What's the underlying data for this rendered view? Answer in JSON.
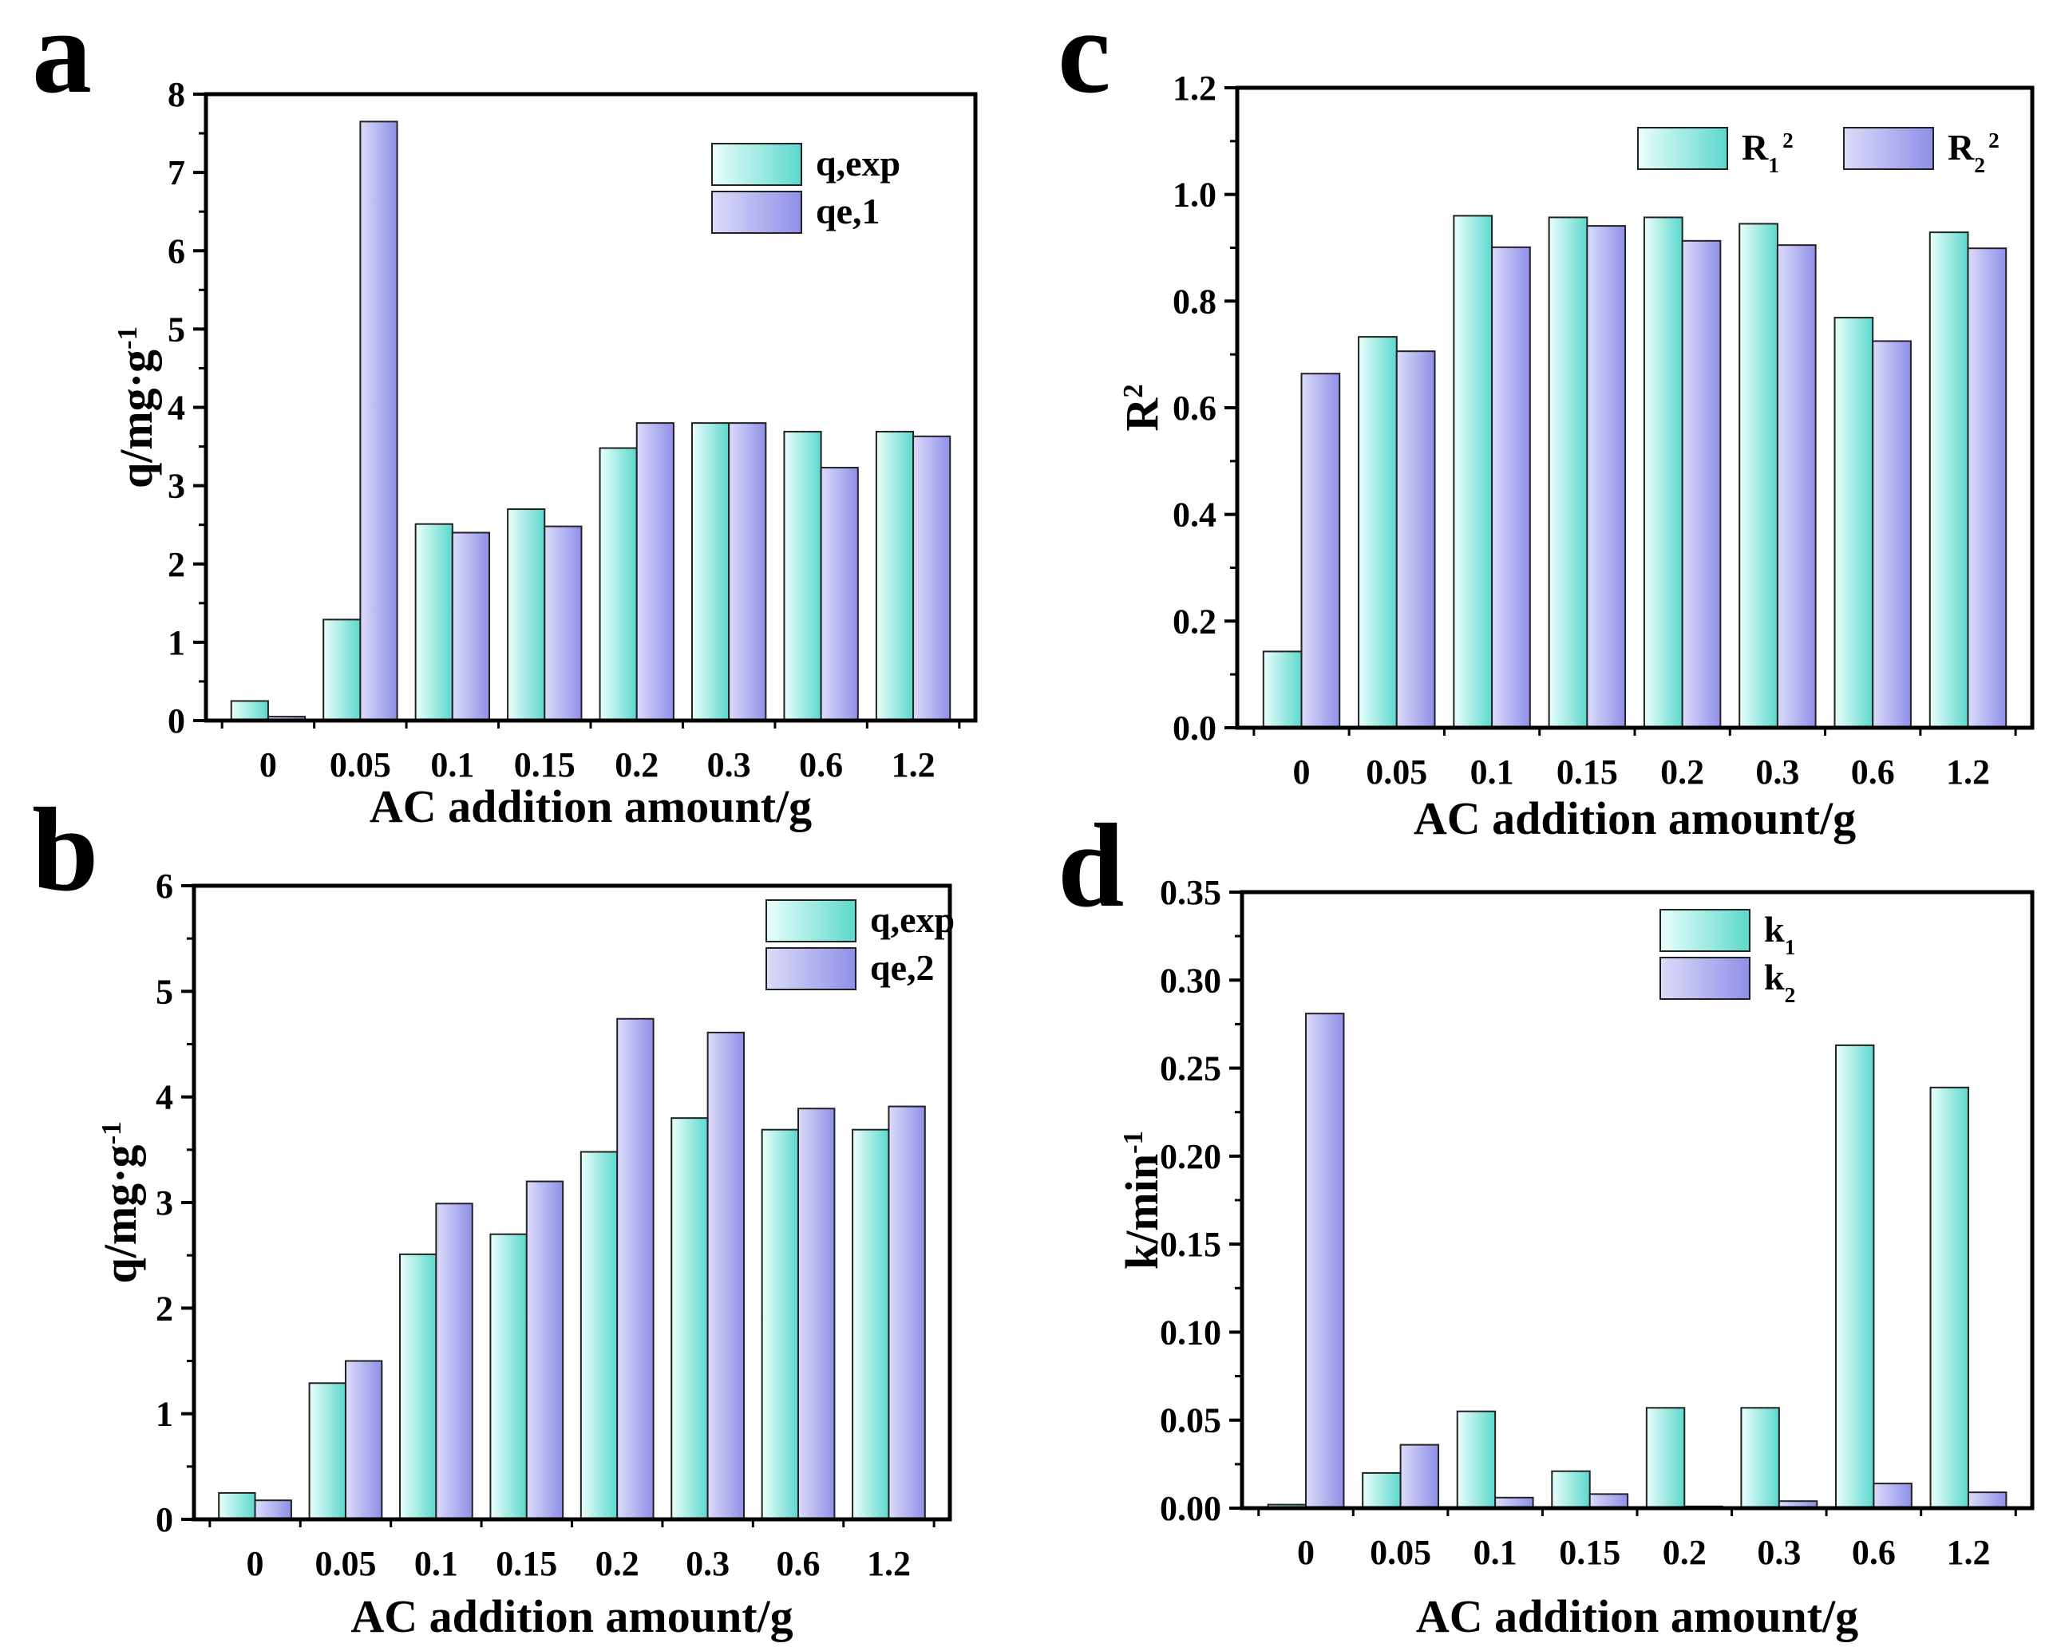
{
  "figure": {
    "panels": [
      "a",
      "b",
      "c",
      "d"
    ]
  },
  "colors": {
    "series1_light": "#eafffb",
    "series1_dark": "#5cd8cd",
    "series2_light": "#dcdcfa",
    "series2_dark": "#8f8fe8",
    "axis": "#000000"
  },
  "chart_data": [
    {
      "panel": "a",
      "type": "bar",
      "categories": [
        "0",
        "0.05",
        "0.1",
        "0.15",
        "0.2",
        "0.3",
        "0.6",
        "1.2"
      ],
      "series": [
        {
          "name": "q,exp",
          "values": [
            0.25,
            1.29,
            2.51,
            2.7,
            3.48,
            3.8,
            3.69,
            3.69
          ]
        },
        {
          "name": "qe,1",
          "values": [
            0.05,
            7.65,
            2.4,
            2.48,
            3.8,
            3.8,
            3.23,
            3.63
          ]
        }
      ],
      "xlabel": "AC addition amount/g",
      "ylabel": {
        "base": "q/mg·g",
        "sup": "-1"
      },
      "ylim": [
        0,
        8
      ],
      "yticks": [
        "0",
        "1",
        "2",
        "3",
        "4",
        "5",
        "6",
        "7",
        "8"
      ],
      "legend_position": "top-right",
      "grid": false
    },
    {
      "panel": "b",
      "type": "bar",
      "categories": [
        "0",
        "0.05",
        "0.1",
        "0.15",
        "0.2",
        "0.3",
        "0.6",
        "1.2"
      ],
      "series": [
        {
          "name": "q,exp",
          "values": [
            0.25,
            1.29,
            2.51,
            2.7,
            3.48,
            3.8,
            3.69,
            3.69
          ]
        },
        {
          "name": "qe,2",
          "values": [
            0.18,
            1.5,
            2.99,
            3.2,
            4.74,
            4.61,
            3.89,
            3.91
          ]
        }
      ],
      "xlabel": "AC addition amount/g",
      "ylabel": {
        "base": "q/mg·g",
        "sup": "-1"
      },
      "ylim": [
        0,
        6
      ],
      "yticks": [
        "0",
        "1",
        "2",
        "3",
        "4",
        "5",
        "6"
      ],
      "legend_position": "top-right",
      "grid": false
    },
    {
      "panel": "c",
      "type": "bar",
      "categories": [
        "0",
        "0.05",
        "0.1",
        "0.15",
        "0.2",
        "0.3",
        "0.6",
        "1.2"
      ],
      "series": [
        {
          "name": "R1 2",
          "label": {
            "base": "R",
            "sub": "1",
            "sup": "2"
          },
          "values": [
            0.143,
            0.733,
            0.96,
            0.957,
            0.957,
            0.945,
            0.769,
            0.929
          ]
        },
        {
          "name": "R2 2",
          "label": {
            "base": "R",
            "sub": "2",
            "sup": "2"
          },
          "values": [
            0.664,
            0.706,
            0.901,
            0.941,
            0.913,
            0.905,
            0.725,
            0.899
          ]
        }
      ],
      "xlabel": "AC addition amount/g",
      "ylabel": {
        "base": "R",
        "sup": "2"
      },
      "ylim": [
        0,
        1.2
      ],
      "yticks": [
        "0.0",
        "0.2",
        "0.4",
        "0.6",
        "0.8",
        "1.0",
        "1.2"
      ],
      "legend_position": "top-right",
      "grid": false
    },
    {
      "panel": "d",
      "type": "bar",
      "categories": [
        "0",
        "0.05",
        "0.1",
        "0.15",
        "0.2",
        "0.3",
        "0.6",
        "1.2"
      ],
      "series": [
        {
          "name": "k1",
          "label": {
            "base": "k",
            "sub": "1"
          },
          "values": [
            0.002,
            0.02,
            0.055,
            0.021,
            0.057,
            0.057,
            0.263,
            0.239
          ]
        },
        {
          "name": "k2",
          "label": {
            "base": "k",
            "sub": "2"
          },
          "values": [
            0.281,
            0.036,
            0.006,
            0.008,
            0.001,
            0.004,
            0.014,
            0.009
          ]
        }
      ],
      "xlabel": "AC addition amount/g",
      "ylabel": {
        "base": "k/min",
        "sup": "-1"
      },
      "ylim": [
        0,
        0.35
      ],
      "yticks": [
        "0.00",
        "0.05",
        "0.10",
        "0.15",
        "0.20",
        "0.25",
        "0.30",
        "0.35"
      ],
      "legend_position": "top-center",
      "grid": false
    }
  ]
}
